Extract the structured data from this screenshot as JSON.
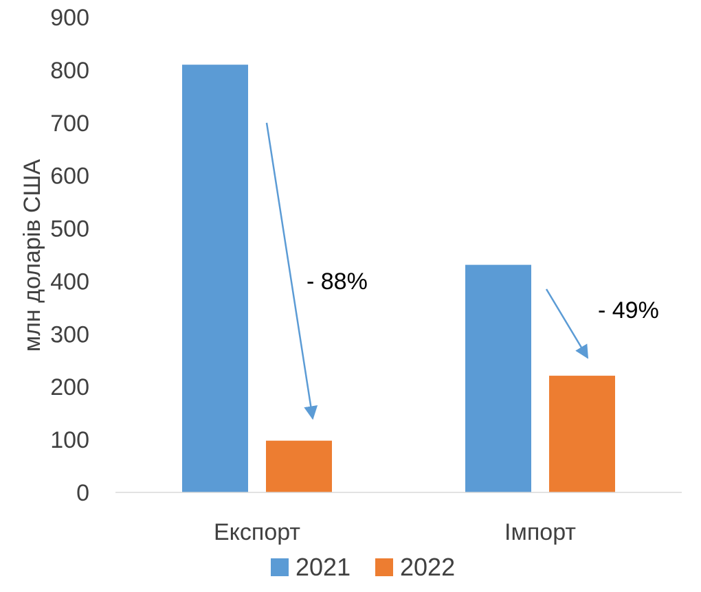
{
  "chart_data": {
    "type": "bar",
    "title": "",
    "xlabel": "",
    "ylabel": "млн доларів США",
    "ylim": [
      0,
      900
    ],
    "yticks": [
      0,
      100,
      200,
      300,
      400,
      500,
      600,
      700,
      800,
      900
    ],
    "grid": false,
    "legend_position": "bottom",
    "categories": [
      "Експорт",
      "Імпорт"
    ],
    "series": [
      {
        "name": "2021",
        "color": "#5B9BD5",
        "values": [
          810,
          431
        ]
      },
      {
        "name": "2022",
        "color": "#ED7D31",
        "values": [
          98,
          221
        ]
      }
    ],
    "annotations": [
      {
        "text": "- 88%",
        "category": "Експорт",
        "arrow_from": 700,
        "arrow_to": 140,
        "arrow_color": "#5B9BD5"
      },
      {
        "text": "- 49%",
        "category": "Імпорт",
        "arrow_from": 385,
        "arrow_to": 255,
        "arrow_color": "#5B9BD5"
      }
    ]
  }
}
